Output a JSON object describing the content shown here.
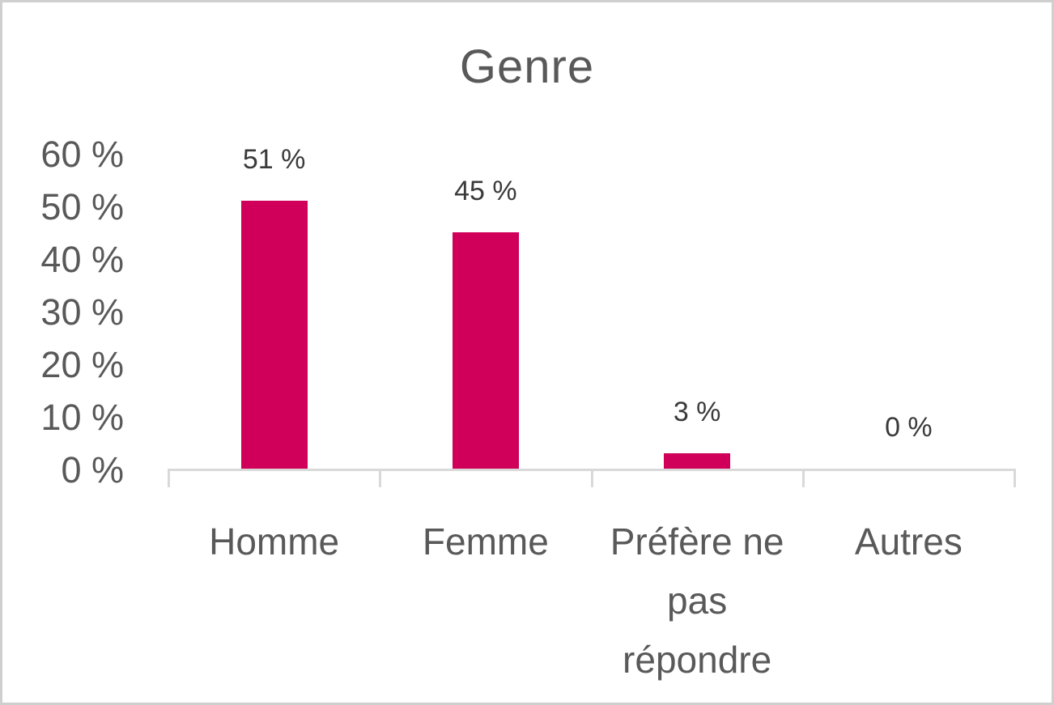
{
  "chart_data": {
    "type": "bar",
    "title": "Genre",
    "categories": [
      "Homme",
      "Femme",
      "Préfère ne pas répondre",
      "Autres"
    ],
    "values": [
      51,
      45,
      3,
      0
    ],
    "value_labels": [
      "51 %",
      "45 %",
      "3 %",
      "0 %"
    ],
    "xlabel": "",
    "ylabel": "",
    "y_axis": {
      "tick_labels": [
        "60 %",
        "50 %",
        "40 %",
        "30 %",
        "20 %",
        "10 %",
        "0 %"
      ],
      "tick_values": [
        60,
        50,
        40,
        30,
        20,
        10,
        0
      ],
      "range": [
        0,
        60
      ]
    },
    "grid": false,
    "legend": "none",
    "colors": {
      "bar": "#D0005A",
      "axis_text": "#595959",
      "value_label_text": "#3A3A3A",
      "axis_line": "#D9D9D9",
      "title_text": "#595959",
      "frame_border": "#CFCFCF"
    }
  }
}
